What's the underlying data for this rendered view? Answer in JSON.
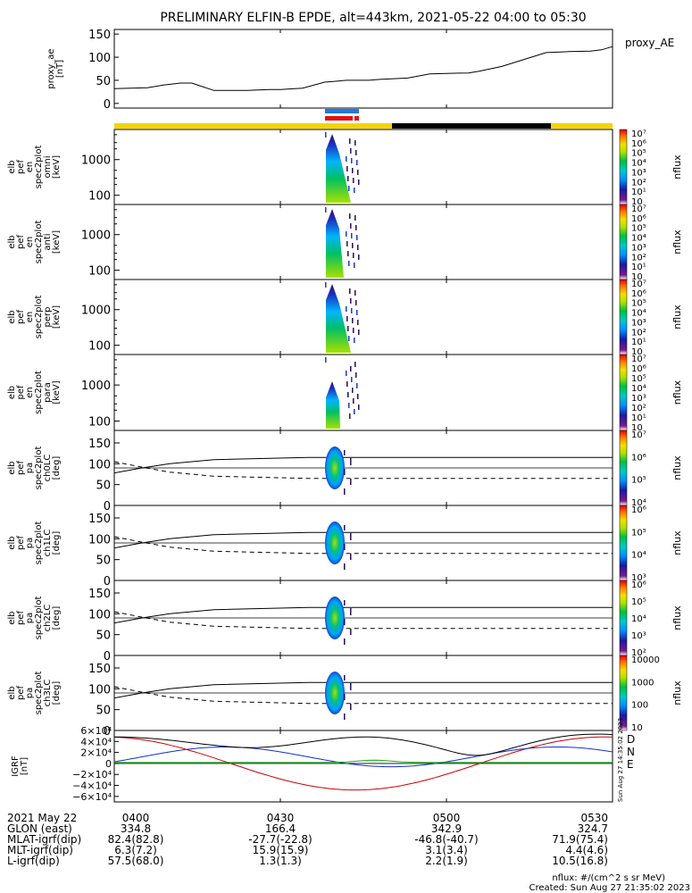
{
  "title": "PRELIMINARY ELFIN-B EPDE, alt=443km, 2021-05-22 04:00 to 05:30",
  "colors": {
    "ae": "#000000",
    "grf_d": "#cc0000",
    "grf_n": "#1030d0",
    "grf_e": "#10b010",
    "grf_total": "#000000",
    "bar_yellow": "#f5d400",
    "bar_black": "#000000",
    "bar_blue": "#1e78e6",
    "bar_red": "#e41010"
  },
  "science_bars": {
    "blue_label": "",
    "red_label": ""
  },
  "panels": [
    {
      "name": "proxy-ae-panel",
      "ylabel_lines": [
        "proxy_ae",
        "[nT]"
      ],
      "legend": "proxy_AE"
    },
    {
      "name": "spectrogram-omni",
      "ylabel_lines": [
        "elb",
        "pef",
        "en",
        "spec2plot",
        "omni",
        "[keV]"
      ],
      "cbar_unit": "nflux"
    },
    {
      "name": "spectrogram-anti",
      "ylabel_lines": [
        "elb",
        "pef",
        "en",
        "spec2plot",
        "anti",
        "[keV]"
      ],
      "cbar_unit": "nflux"
    },
    {
      "name": "spectrogram-perp",
      "ylabel_lines": [
        "elb",
        "pef",
        "en",
        "spec2plot",
        "perp",
        "[keV]"
      ],
      "cbar_unit": "nflux"
    },
    {
      "name": "spectrogram-para",
      "ylabel_lines": [
        "elb",
        "pef",
        "en",
        "spec2plot",
        "para",
        "[keV]"
      ],
      "cbar_unit": "nflux"
    },
    {
      "name": "pitch-angle-ch0",
      "ylabel_lines": [
        "elb",
        "pef",
        "pa",
        "spec2plot",
        "ch0LC",
        "[deg]"
      ],
      "cbar_unit": "nflux"
    },
    {
      "name": "pitch-angle-ch1",
      "ylabel_lines": [
        "elb",
        "pef",
        "pa",
        "spec2plot",
        "ch1LC",
        "[deg]"
      ],
      "cbar_unit": "nflux"
    },
    {
      "name": "pitch-angle-ch2",
      "ylabel_lines": [
        "elb",
        "pef",
        "pa",
        "spec2plot",
        "ch2LC",
        "[deg]"
      ],
      "cbar_unit": "nflux"
    },
    {
      "name": "pitch-angle-ch3",
      "ylabel_lines": [
        "elb",
        "pef",
        "pa",
        "spec2plot",
        "ch3LC",
        "[deg]"
      ],
      "cbar_unit": "nflux"
    },
    {
      "name": "igrf-panel",
      "ylabel_lines": [
        "IGRF",
        "[nT]"
      ]
    }
  ],
  "chart_data": {
    "type": "line",
    "x_range": [
      "04:00",
      "05:30"
    ],
    "proxy_ae": {
      "ylim": [
        -10,
        160
      ],
      "yticks": [
        "0",
        "50",
        "100",
        "150"
      ],
      "t": [
        0,
        3,
        6,
        9,
        12,
        14,
        15,
        18,
        24,
        28,
        30,
        34,
        38,
        42,
        46,
        48,
        53,
        57,
        60,
        64,
        66,
        70,
        74,
        78,
        82,
        86,
        88,
        90
      ],
      "values": [
        32,
        33,
        34,
        40,
        44,
        44,
        40,
        28,
        28,
        30,
        30,
        33,
        46,
        50,
        50,
        52,
        55,
        64,
        65,
        66,
        70,
        80,
        95,
        110,
        112,
        113,
        116,
        123
      ]
    },
    "energy_spectrograms": {
      "yticks": [
        "100",
        "1000"
      ],
      "ylim_keV": [
        55,
        7000
      ],
      "colorbar_ticks": [
        "10",
        "10¹",
        "10²",
        "10³",
        "10⁴",
        "10⁵",
        "10⁶",
        "10⁷"
      ],
      "colorbar_label": "nflux"
    },
    "pitch_angle_spectrograms": {
      "ylim": [
        0,
        180
      ],
      "yticks": [
        "0",
        "50",
        "100",
        "150"
      ],
      "loss_cone_upper_deg": [
        78,
        90,
        100,
        110,
        115,
        115,
        115,
        115
      ],
      "loss_cone_lower_deg": [
        105,
        92,
        80,
        70,
        65,
        65,
        65,
        65
      ],
      "lc_t": [
        0,
        5,
        10,
        18,
        35,
        55,
        75,
        90
      ],
      "colorbar_ticks": [
        [
          "10⁴",
          "10⁵",
          "10⁶",
          "10⁷"
        ],
        [
          "10³",
          "10⁴",
          "10⁵",
          "10⁶"
        ],
        [
          "10²",
          "10³",
          "10⁴",
          "10⁵",
          "10⁶"
        ],
        [
          "10",
          "100",
          "1000",
          "10000"
        ]
      ]
    },
    "igrf": {
      "ylim": [
        -70000,
        60000
      ],
      "yticks": [
        "6×10⁴",
        "4×10⁴",
        "2×10⁴",
        "0",
        "−2×10⁴",
        "−4×10⁴",
        "−6×10⁴"
      ],
      "ytick_values": [
        60000,
        40000,
        20000,
        0,
        -20000,
        -40000,
        -60000
      ],
      "series": [
        {
          "name": "D",
          "color": "#cc0000"
        },
        {
          "name": "N",
          "color": "#1030d0"
        },
        {
          "name": "E",
          "color": "#10b010"
        }
      ]
    },
    "ephemeris": {
      "rows": [
        {
          "label": "2021 May 22",
          "values": [
            "0400",
            "0430",
            "0500",
            "0530"
          ]
        },
        {
          "label": "GLON (east)",
          "values": [
            "334.8",
            "166.4",
            "342.9",
            "324.7"
          ]
        },
        {
          "label": "MLAT-igrf(dip)",
          "values": [
            "82.4(82.8)",
            "-27.7(-22.8)",
            "-46.8(-40.7)",
            "71.9(75.4)"
          ]
        },
        {
          "label": "MLT-igrf(dip)",
          "values": [
            "6.3(7.2)",
            "15.9(15.9)",
            "3.1(3.4)",
            "4.4(4.6)"
          ]
        },
        {
          "label": "L-igrf(dip)",
          "values": [
            "57.5(68.0)",
            "1.3(1.3)",
            "2.2(1.9)",
            "10.5(16.8)"
          ]
        }
      ]
    }
  },
  "footer": {
    "units": "nflux: #/(cm^2 s sr MeV)",
    "created": "Created: Sun Aug 27 21:35:02 2023",
    "side_stamp": "Sun Aug 27 14:35:02 2023"
  }
}
